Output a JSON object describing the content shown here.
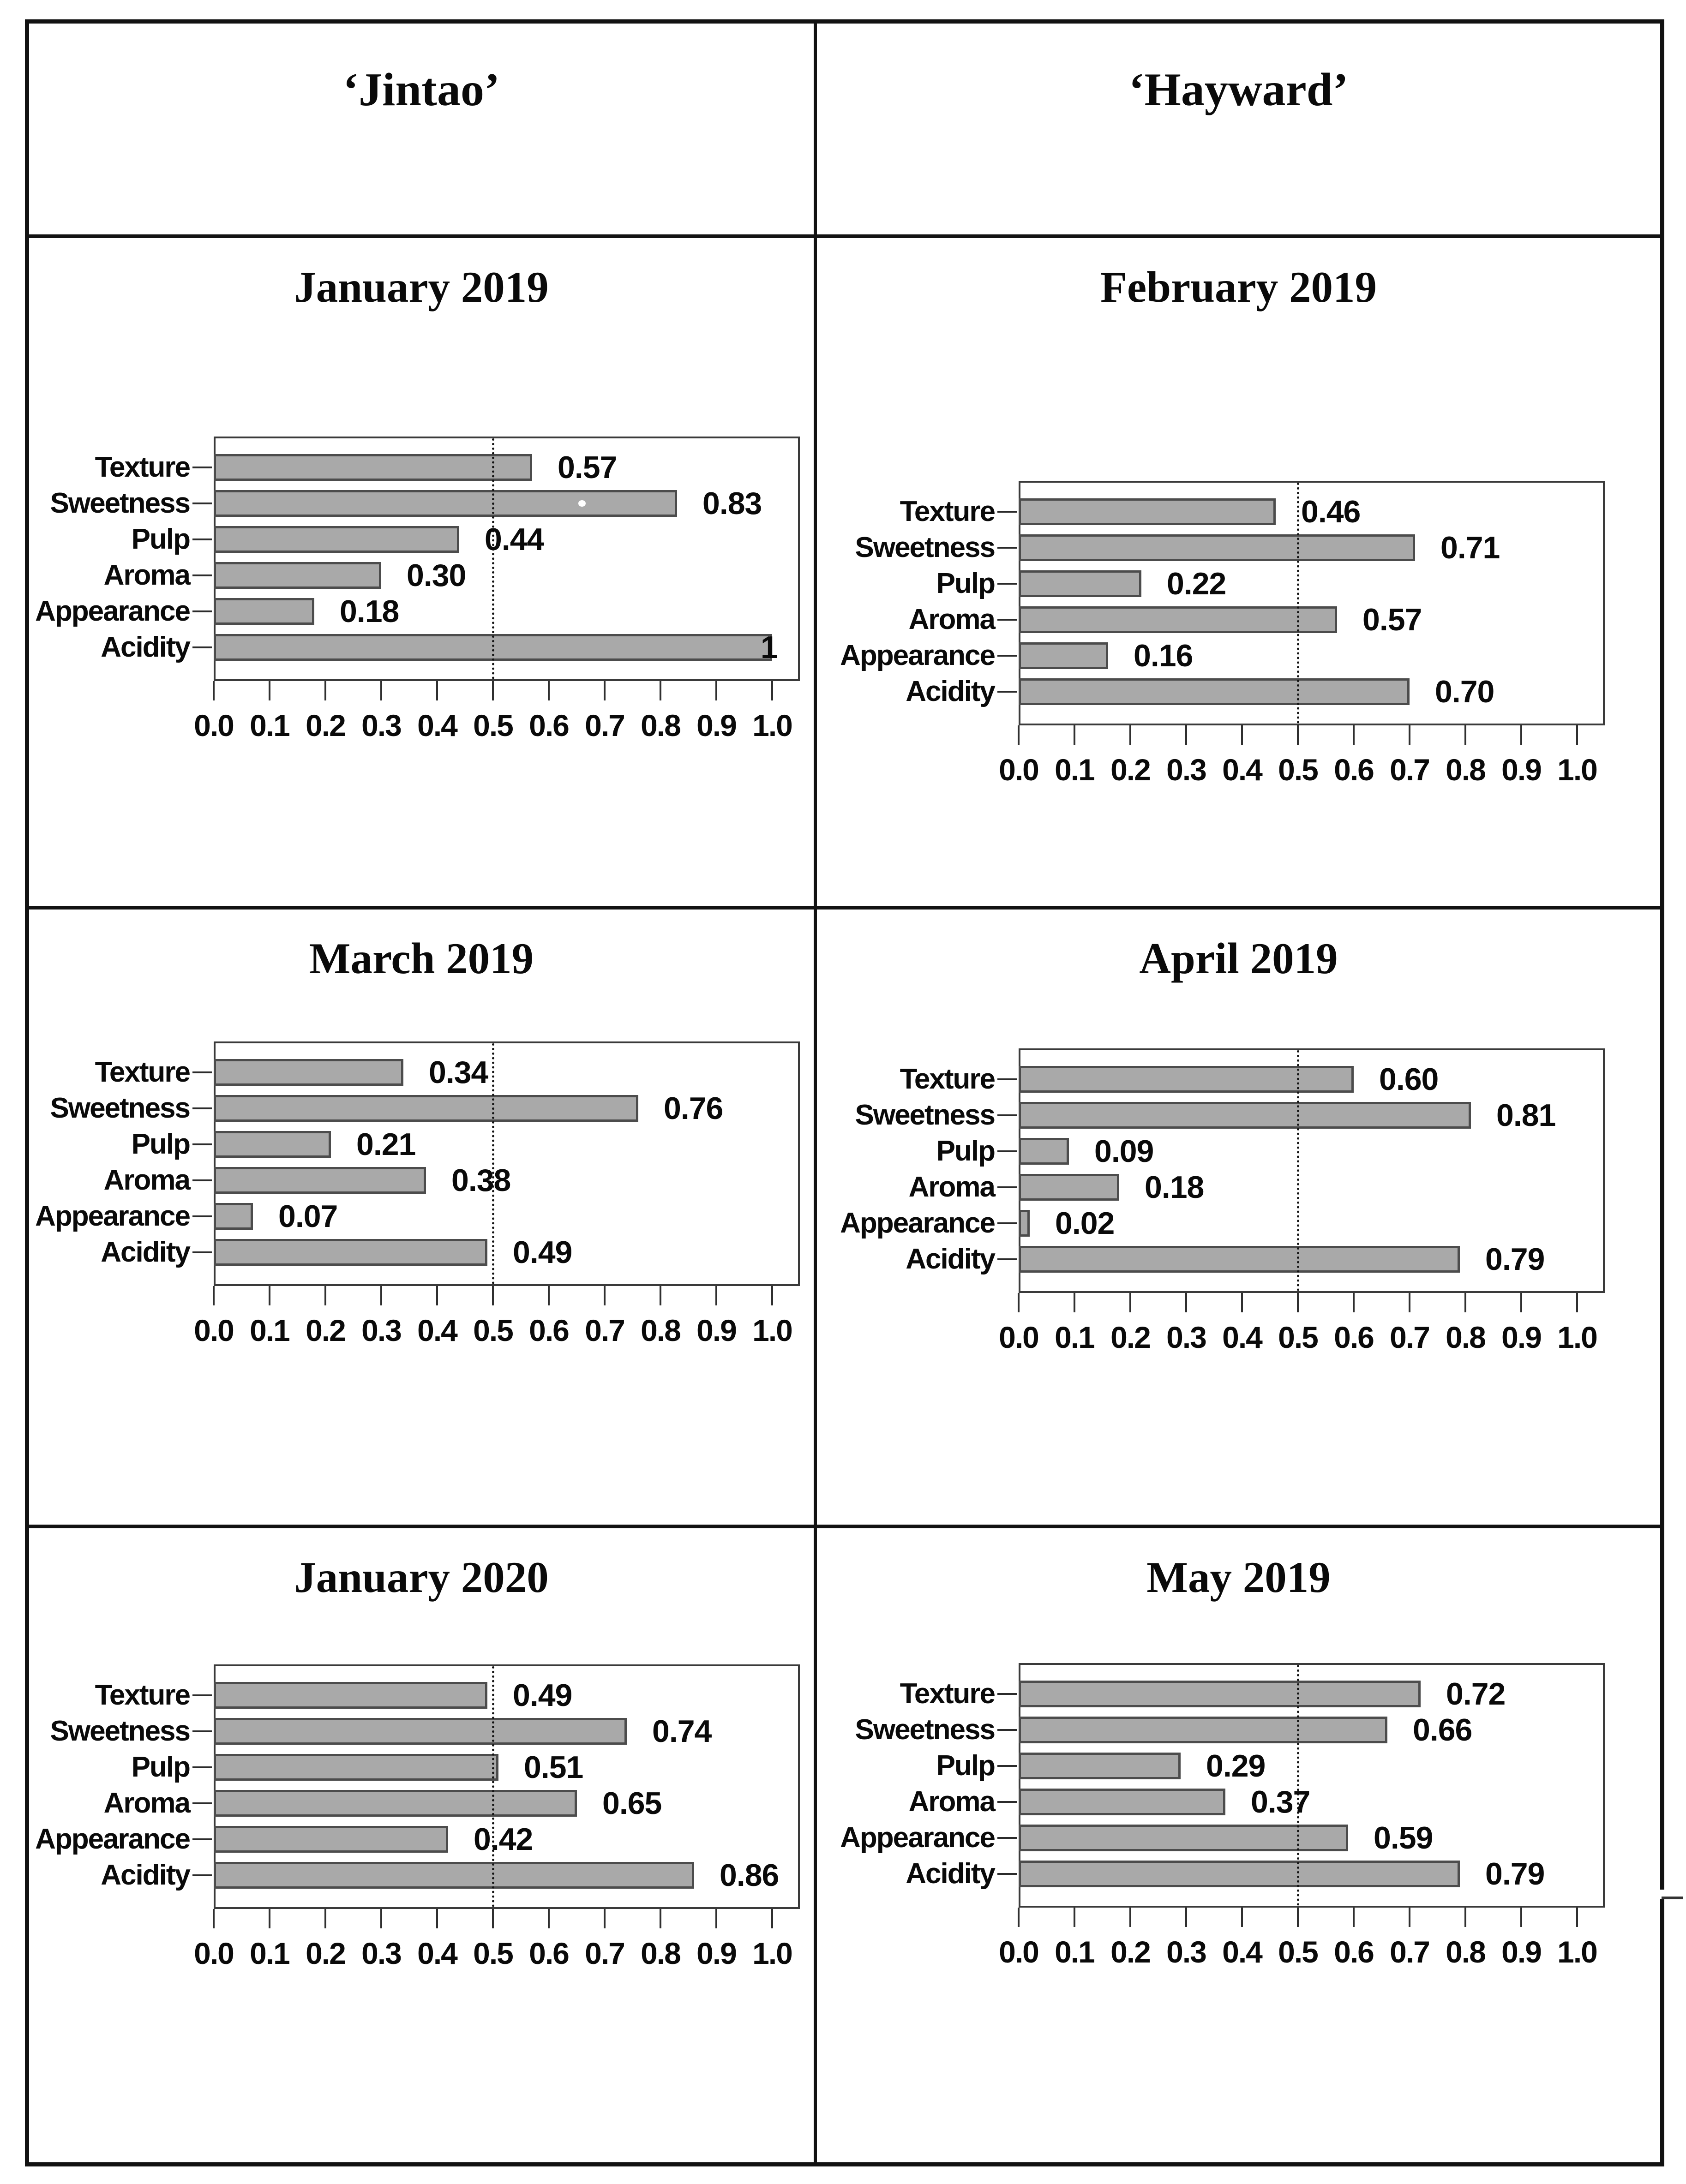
{
  "figure": {
    "description": "Grid of horizontal bar charts of sensory attributes for two kiwifruit varieties",
    "columns": [
      "‘Jintao’",
      "‘Hayward’"
    ],
    "rows": [
      [
        "January 2019",
        "February 2019"
      ],
      [
        "March 2019",
        "April 2019"
      ],
      [
        "January 2020",
        "May 2019"
      ]
    ]
  },
  "header": {
    "left_variety": "‘Jintao’",
    "right_variety": "‘Hayward’"
  },
  "categories": [
    "Texture",
    "Sweetness",
    "Pulp",
    "Aroma",
    "Appearance",
    "Acidity"
  ],
  "axis": {
    "min": 0,
    "max": 1,
    "tick_labels": [
      "0.0",
      "0.1",
      "0.2",
      "0.3",
      "0.4",
      "0.5",
      "0.6",
      "0.7",
      "0.8",
      "0.9",
      "1.0"
    ],
    "reference_line": 0.5,
    "grid": false
  },
  "colors": {
    "bar_fill": "#a9a9a9",
    "bar_border": "#4c4c4c",
    "plot_border": "#3a3a3a",
    "reference_line": "#141414",
    "table_border": "#121212",
    "text": "#0a0a0a"
  },
  "chart_data": [
    {
      "type": "bar",
      "orientation": "horizontal",
      "title": "January 2019",
      "column": "‘Jintao’",
      "categories": [
        "Texture",
        "Sweetness",
        "Pulp",
        "Aroma",
        "Appearance",
        "Acidity"
      ],
      "values": [
        0.57,
        0.83,
        0.44,
        0.3,
        0.18,
        1
      ],
      "value_labels": [
        "0.57",
        "0.83",
        "0.44",
        "0.30",
        "0.18",
        "1"
      ],
      "xlim": [
        0,
        1.05
      ],
      "reference_line": 0.5,
      "legend": null
    },
    {
      "type": "bar",
      "orientation": "horizontal",
      "title": "February 2019",
      "column": "‘Hayward’",
      "categories": [
        "Texture",
        "Sweetness",
        "Pulp",
        "Aroma",
        "Appearance",
        "Acidity"
      ],
      "values": [
        0.46,
        0.71,
        0.22,
        0.57,
        0.16,
        0.7
      ],
      "value_labels": [
        "0.46",
        "0.71",
        "0.22",
        "0.57",
        "0.16",
        "0.70"
      ],
      "xlim": [
        0,
        1.05
      ],
      "reference_line": 0.5,
      "legend": null
    },
    {
      "type": "bar",
      "orientation": "horizontal",
      "title": "March 2019",
      "column": "‘Jintao’",
      "categories": [
        "Texture",
        "Sweetness",
        "Pulp",
        "Aroma",
        "Appearance",
        "Acidity"
      ],
      "values": [
        0.34,
        0.76,
        0.21,
        0.38,
        0.07,
        0.49
      ],
      "value_labels": [
        "0.34",
        "0.76",
        "0.21",
        "0.38",
        "0.07",
        "0.49"
      ],
      "xlim": [
        0,
        1.05
      ],
      "reference_line": 0.5,
      "legend": null
    },
    {
      "type": "bar",
      "orientation": "horizontal",
      "title": "April 2019",
      "column": "‘Hayward’",
      "categories": [
        "Texture",
        "Sweetness",
        "Pulp",
        "Aroma",
        "Appearance",
        "Acidity"
      ],
      "values": [
        0.6,
        0.81,
        0.09,
        0.18,
        0.02,
        0.79
      ],
      "value_labels": [
        "0.60",
        "0.81",
        "0.09",
        "0.18",
        "0.02",
        "0.79"
      ],
      "xlim": [
        0,
        1.05
      ],
      "reference_line": 0.5,
      "legend": null
    },
    {
      "type": "bar",
      "orientation": "horizontal",
      "title": "January 2020",
      "column": "‘Jintao’",
      "categories": [
        "Texture",
        "Sweetness",
        "Pulp",
        "Aroma",
        "Appearance",
        "Acidity"
      ],
      "values": [
        0.49,
        0.74,
        0.51,
        0.65,
        0.42,
        0.86
      ],
      "value_labels": [
        "0.49",
        "0.74",
        "0.51",
        "0.65",
        "0.42",
        "0.86"
      ],
      "xlim": [
        0,
        1.05
      ],
      "reference_line": 0.5,
      "legend": null
    },
    {
      "type": "bar",
      "orientation": "horizontal",
      "title": "May 2019",
      "column": "‘Hayward’",
      "categories": [
        "Texture",
        "Sweetness",
        "Pulp",
        "Aroma",
        "Appearance",
        "Acidity"
      ],
      "values": [
        0.72,
        0.66,
        0.29,
        0.37,
        0.59,
        0.79
      ],
      "value_labels": [
        "0.72",
        "0.66",
        "0.29",
        "0.37",
        "0.59",
        "0.79"
      ],
      "xlim": [
        0,
        1.05
      ],
      "reference_line": 0.5,
      "legend": null
    }
  ]
}
